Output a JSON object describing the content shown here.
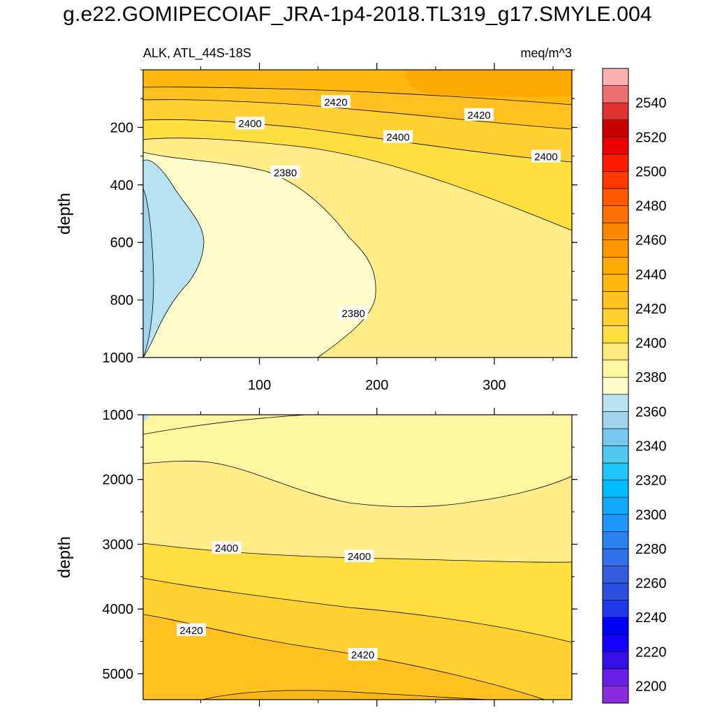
{
  "title": "g.e22.GOMIPECOIAF_JRA-1p4-2018.TL319_g17.SMYLE.004",
  "chart_data": {
    "type": "heatmap",
    "variable_label": "ALK, ATL_44S-18S",
    "units_label": "meq/m^3",
    "panels": [
      {
        "name": "upper",
        "ylabel": "depth",
        "xlim": [
          1,
          366
        ],
        "ylim": [
          1000,
          0
        ],
        "xticks": [
          100,
          200,
          300
        ],
        "yticks": [
          200,
          400,
          600,
          800,
          1000
        ],
        "contour_labels": [
          {
            "text": "2420",
            "x": 165,
            "y": 110
          },
          {
            "text": "2420",
            "x": 287,
            "y": 155
          },
          {
            "text": "2400",
            "x": 92,
            "y": 185
          },
          {
            "text": "2400",
            "x": 218,
            "y": 232
          },
          {
            "text": "2400",
            "x": 344,
            "y": 300
          },
          {
            "text": "2380",
            "x": 122,
            "y": 355
          },
          {
            "text": "2380",
            "x": 180,
            "y": 845
          }
        ]
      },
      {
        "name": "lower",
        "ylabel": "depth",
        "xlim": [
          1,
          366
        ],
        "ylim": [
          5400,
          1000
        ],
        "yticks": [
          1000,
          2000,
          3000,
          4000,
          5000
        ],
        "contour_labels": [
          {
            "text": "2400",
            "x": 72,
            "y": 3050
          },
          {
            "text": "2400",
            "x": 185,
            "y": 3180
          },
          {
            "text": "2420",
            "x": 42,
            "y": 4320
          },
          {
            "text": "2420",
            "x": 188,
            "y": 4700
          }
        ]
      }
    ],
    "colorbar": {
      "levels": [
        2190,
        2200,
        2210,
        2220,
        2230,
        2240,
        2250,
        2260,
        2270,
        2280,
        2290,
        2300,
        2310,
        2320,
        2330,
        2340,
        2350,
        2360,
        2370,
        2380,
        2390,
        2400,
        2410,
        2420,
        2430,
        2440,
        2450,
        2460,
        2470,
        2480,
        2490,
        2500,
        2510,
        2520,
        2530,
        2540,
        2550,
        2560
      ],
      "colors": [
        "#8a2be2",
        "#6a1fe8",
        "#3410e6",
        "#1400f8",
        "#0000ff",
        "#1f38e8",
        "#2b50e0",
        "#3460e0",
        "#3070e8",
        "#2c80f0",
        "#1f94ff",
        "#10a8f8",
        "#00bcff",
        "#20c4f8",
        "#50c8f0",
        "#78c8f0",
        "#a0d4ec",
        "#b8e2f2",
        "#fffccc",
        "#fff4a0",
        "#ffe880",
        "#ffde40",
        "#ffd030",
        "#ffc020",
        "#ffb810",
        "#ffa800",
        "#ff9800",
        "#ff8800",
        "#ff7000",
        "#ff5a00",
        "#ff3800",
        "#ff1a00",
        "#ee0000",
        "#cc0000",
        "#dd3333",
        "#ee7070",
        "#ffb0b0"
      ],
      "tick_labels": [
        "2200",
        "2220",
        "2240",
        "2260",
        "2280",
        "2300",
        "2320",
        "2340",
        "2360",
        "2380",
        "2400",
        "2420",
        "2440",
        "2460",
        "2480",
        "2500",
        "2520",
        "2540"
      ]
    }
  }
}
